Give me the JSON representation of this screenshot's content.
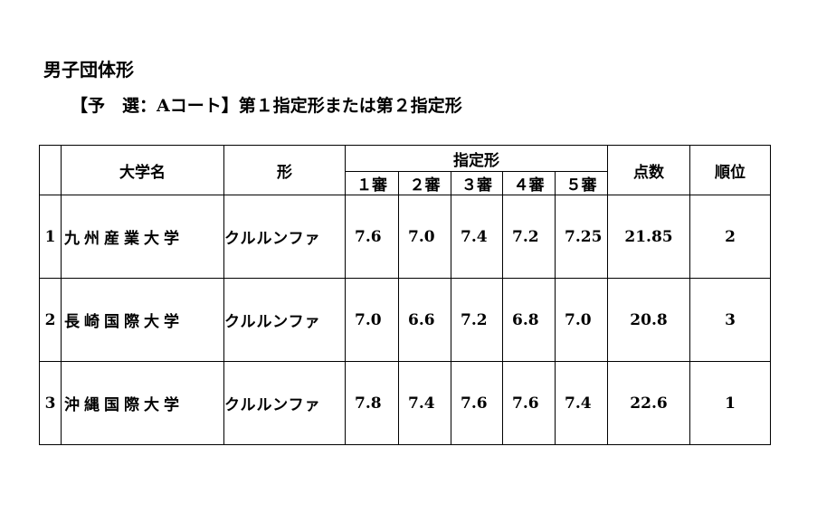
{
  "title": "男子団体形",
  "subtitle": "【予　選：Aコート】第１指定形または第２指定形",
  "table": {
    "headers": {
      "university": "大学名",
      "kata": "形",
      "designated": "指定形",
      "judges": [
        "１審",
        "２審",
        "３審",
        "４審",
        "５審"
      ],
      "points": "点数",
      "rank": "順位"
    },
    "rows": [
      {
        "no": "1",
        "university": "九州産業大学",
        "kata": "クルルンファ",
        "scores": [
          "7.6",
          "7.0",
          "7.4",
          "7.2",
          "7.25"
        ],
        "points": "21.85",
        "rank": "2"
      },
      {
        "no": "2",
        "university": "長崎国際大学",
        "kata": "クルルンファ",
        "scores": [
          "7.0",
          "6.6",
          "7.2",
          "6.8",
          "7.0"
        ],
        "points": "20.8",
        "rank": "3"
      },
      {
        "no": "3",
        "university": "沖縄国際大学",
        "kata": "クルルンファ",
        "scores": [
          "7.8",
          "7.4",
          "7.6",
          "7.6",
          "7.4"
        ],
        "points": "22.6",
        "rank": "1"
      }
    ]
  }
}
